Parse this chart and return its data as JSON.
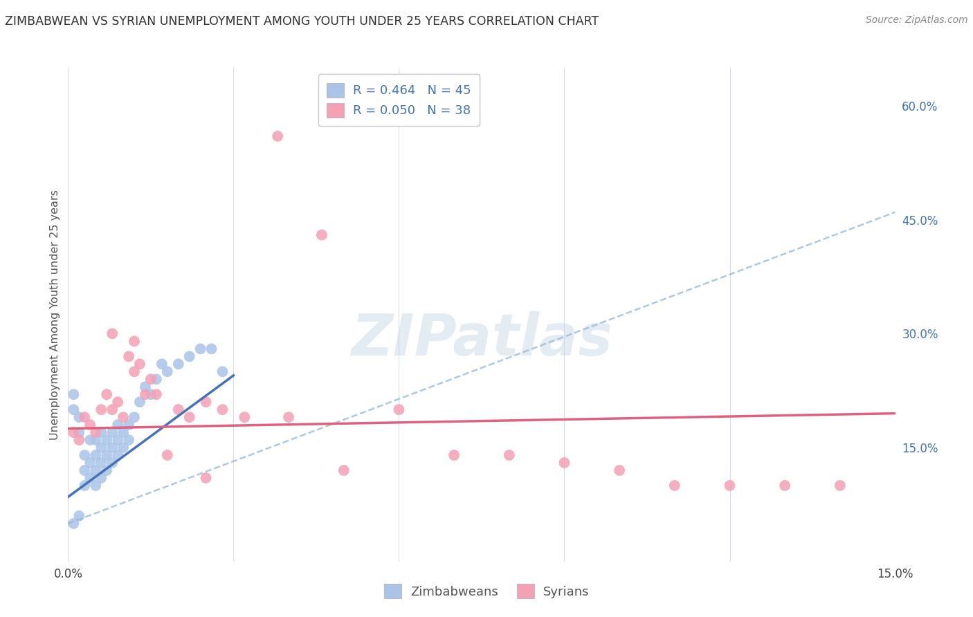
{
  "title": "ZIMBABWEAN VS SYRIAN UNEMPLOYMENT AMONG YOUTH UNDER 25 YEARS CORRELATION CHART",
  "source": "Source: ZipAtlas.com",
  "ylabel": "Unemployment Among Youth under 25 years",
  "xlim": [
    0.0,
    0.15
  ],
  "ylim": [
    0.0,
    0.65
  ],
  "legend_zim": "R = 0.464   N = 45",
  "legend_syr": "R = 0.050   N = 38",
  "zim_color": "#aac4e8",
  "syr_color": "#f4a0b5",
  "zim_line_color": "#4472b8",
  "syr_line_color": "#e06080",
  "dash_color": "#90b8d8",
  "watermark": "ZIPatlas",
  "background_color": "#ffffff",
  "grid_color": "#d4dde8",
  "zim_x": [
    0.001,
    0.001,
    0.002,
    0.002,
    0.003,
    0.003,
    0.003,
    0.004,
    0.004,
    0.004,
    0.005,
    0.005,
    0.005,
    0.005,
    0.006,
    0.006,
    0.006,
    0.006,
    0.007,
    0.007,
    0.007,
    0.008,
    0.008,
    0.008,
    0.009,
    0.009,
    0.009,
    0.01,
    0.01,
    0.011,
    0.011,
    0.012,
    0.013,
    0.014,
    0.015,
    0.016,
    0.017,
    0.018,
    0.02,
    0.022,
    0.024,
    0.026,
    0.028,
    0.001,
    0.002
  ],
  "zim_y": [
    0.2,
    0.22,
    0.17,
    0.19,
    0.1,
    0.12,
    0.14,
    0.11,
    0.13,
    0.16,
    0.1,
    0.12,
    0.14,
    0.16,
    0.11,
    0.13,
    0.15,
    0.17,
    0.12,
    0.14,
    0.16,
    0.13,
    0.15,
    0.17,
    0.14,
    0.16,
    0.18,
    0.15,
    0.17,
    0.16,
    0.18,
    0.19,
    0.21,
    0.23,
    0.22,
    0.24,
    0.26,
    0.25,
    0.26,
    0.27,
    0.28,
    0.28,
    0.25,
    0.05,
    0.06
  ],
  "syr_x": [
    0.001,
    0.002,
    0.003,
    0.004,
    0.005,
    0.006,
    0.007,
    0.008,
    0.009,
    0.01,
    0.011,
    0.012,
    0.013,
    0.014,
    0.015,
    0.016,
    0.018,
    0.02,
    0.022,
    0.025,
    0.028,
    0.032,
    0.04,
    0.05,
    0.06,
    0.07,
    0.08,
    0.09,
    0.1,
    0.11,
    0.12,
    0.13,
    0.14,
    0.025,
    0.038,
    0.046,
    0.012,
    0.008
  ],
  "syr_y": [
    0.17,
    0.16,
    0.19,
    0.18,
    0.17,
    0.2,
    0.22,
    0.2,
    0.21,
    0.19,
    0.27,
    0.25,
    0.26,
    0.22,
    0.24,
    0.22,
    0.14,
    0.2,
    0.19,
    0.21,
    0.2,
    0.19,
    0.19,
    0.12,
    0.2,
    0.14,
    0.14,
    0.13,
    0.12,
    0.1,
    0.1,
    0.1,
    0.1,
    0.11,
    0.56,
    0.43,
    0.29,
    0.3
  ],
  "zim_line_x0": 0.0,
  "zim_line_x1": 0.03,
  "zim_line_y0": 0.085,
  "zim_line_y1": 0.245,
  "syr_line_x0": 0.0,
  "syr_line_x1": 0.15,
  "syr_line_y0": 0.175,
  "syr_line_y1": 0.195,
  "dash_line_x0": 0.0,
  "dash_line_x1": 0.15,
  "dash_line_y0": 0.05,
  "dash_line_y1": 0.46
}
